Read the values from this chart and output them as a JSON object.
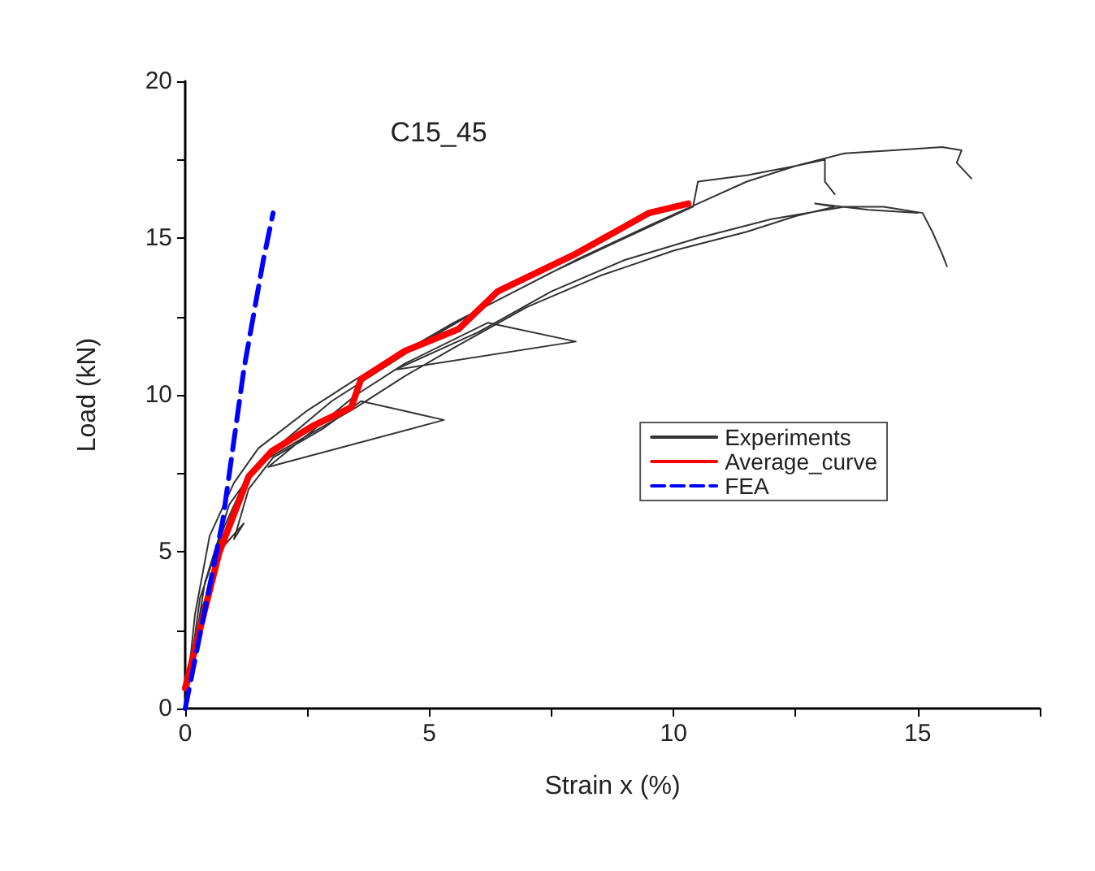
{
  "chart_data": {
    "type": "line",
    "annotations": [
      "C15_45"
    ],
    "xlabel": "Strain x (%)",
    "ylabel": "Load (kN)",
    "xlim": [
      0,
      17.5
    ],
    "xticks": [
      0,
      {
        "value": 2.5,
        "label": null
      },
      5,
      {
        "value": 7.5,
        "label": null
      },
      10,
      {
        "value": 12.5,
        "label": null
      },
      15,
      {
        "value": 17.5,
        "label": null
      }
    ],
    "ylim": [
      0,
      20
    ],
    "yticks": [
      0,
      {
        "value": 2.5,
        "label": null
      },
      5,
      {
        "value": 7.5,
        "label": null
      },
      10,
      {
        "value": 12.5,
        "label": null
      },
      15,
      {
        "value": 17.5,
        "label": null
      },
      20
    ],
    "grid": false,
    "legend": "right",
    "marker": "none",
    "series": [
      {
        "name": "Experiments",
        "color": "#333333",
        "line_style": "solid",
        "x": [
          0,
          0.2,
          0.5,
          1,
          1.5,
          2.5,
          3.5,
          4.5,
          5.5,
          6.5,
          8,
          9.5,
          10.5,
          11.5,
          12.5,
          13.5,
          14.5,
          15.5,
          15.9,
          15.8,
          16.1,
          null,
          0,
          0.3,
          0.8,
          1.3,
          2,
          3,
          4,
          5,
          6,
          7.5,
          9,
          10.4,
          10.5,
          11.5,
          12.5,
          13.1,
          13.1,
          13.3,
          null,
          0,
          0.3,
          0.8,
          1.2,
          1,
          1.3,
          1.8,
          2.8,
          3.6,
          5.3,
          1.7,
          3.5,
          4.5,
          6.2,
          8,
          4.3,
          6,
          7.5,
          9,
          10.5,
          12,
          13.5,
          14.3,
          15.1,
          15.3,
          15.5,
          15.6,
          null,
          0,
          0.4,
          0.9,
          1.5,
          2.5,
          3.5,
          4.5,
          5.5,
          7,
          8.5,
          10,
          11.5,
          12.5,
          13.3,
          12.9,
          14,
          15
        ],
        "values": [
          0,
          3,
          5.5,
          7.2,
          8.3,
          9.5,
          10.5,
          11.4,
          12.3,
          13.1,
          14.3,
          15.4,
          16.1,
          16.8,
          17.3,
          17.7,
          17.8,
          17.9,
          17.8,
          17.4,
          16.9,
          null,
          0,
          3.5,
          5.8,
          7.5,
          8.5,
          9.8,
          10.8,
          11.8,
          12.7,
          13.9,
          15,
          16,
          16.8,
          17,
          17.3,
          17.5,
          16.8,
          16.4,
          null,
          0,
          3,
          5.2,
          5.9,
          5.4,
          7,
          8,
          8.9,
          9.8,
          9.2,
          7.7,
          10,
          11,
          12.3,
          11.7,
          10.8,
          12,
          13.3,
          14.3,
          15,
          15.6,
          16,
          16,
          15.8,
          15.2,
          14.5,
          14.1,
          null,
          0,
          4,
          6.5,
          7.8,
          8.7,
          9.6,
          10.6,
          11.5,
          12.8,
          13.8,
          14.6,
          15.2,
          15.7,
          16,
          16.1,
          15.9,
          15.8
        ]
      },
      {
        "name": "Average_curve",
        "color": "#ff0000",
        "line_style": "solid",
        "x": [
          0,
          0.7,
          1.3,
          1.77,
          2.6,
          3.4,
          3.6,
          4.5,
          5.6,
          6.4,
          8,
          9.5,
          10.3
        ],
        "values": [
          0.65,
          5,
          7.4,
          8.2,
          9,
          9.6,
          10.5,
          11.4,
          12.1,
          13.3,
          14.5,
          15.8,
          16.1
        ]
      },
      {
        "name": "FEA",
        "color": "#0000ff",
        "line_style": "dashed",
        "x": [
          0,
          0.77,
          1.2,
          1.6,
          1.8
        ],
        "values": [
          0,
          6,
          10.8,
          14.3,
          15.8
        ]
      }
    ]
  }
}
